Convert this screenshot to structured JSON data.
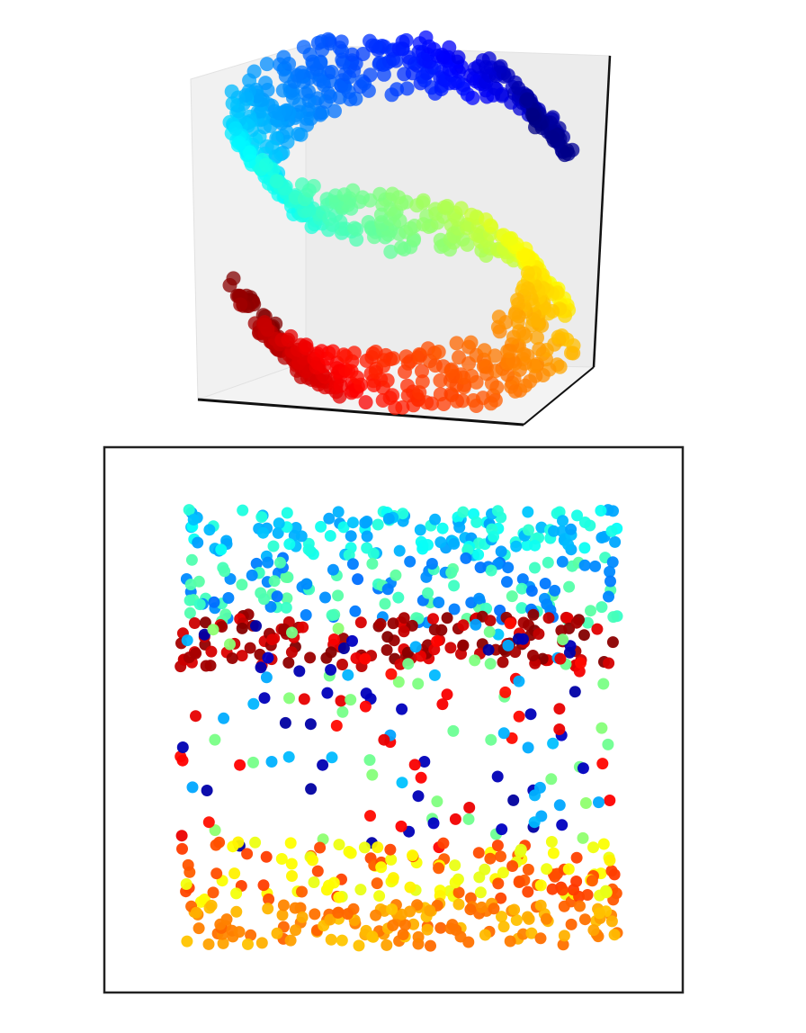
{
  "chart_data": [
    {
      "type": "scatter",
      "projection": "3d",
      "shape": "s-curve",
      "colormap": "jet",
      "axis_ticks_visible": false,
      "grid": false,
      "point_count": 1000,
      "t_range": [
        -4.712,
        4.712
      ],
      "height_range": [
        0,
        2
      ],
      "marker_alpha": 0.75
    },
    {
      "type": "scatter",
      "projection": "2d",
      "embedding_of": "s-curve",
      "colormap": "jet",
      "axis_ticks_visible": false,
      "grid": false,
      "point_count": 850,
      "xlim": [
        0,
        1
      ],
      "ylim": [
        0,
        1
      ],
      "bands": [
        {
          "y_range": [
            0.89,
            1.0
          ],
          "color_values": [
            0.3,
            0.4
          ]
        },
        {
          "y_range": [
            0.74,
            0.89
          ],
          "color_values": [
            0.25,
            0.45
          ]
        },
        {
          "y_range": [
            0.64,
            0.76
          ],
          "color_values": [
            0.92,
            0.98
          ]
        },
        {
          "y_range": [
            0.22,
            0.74
          ],
          "color_values": [
            0.05,
            0.3,
            0.5,
            0.88
          ]
        },
        {
          "y_range": [
            0.1,
            0.24
          ],
          "color_values": [
            0.62,
            0.8
          ]
        },
        {
          "y_range": [
            0.0,
            0.1
          ],
          "color_values": [
            0.7,
            0.76
          ]
        }
      ],
      "marker_alpha": 0.95
    }
  ]
}
